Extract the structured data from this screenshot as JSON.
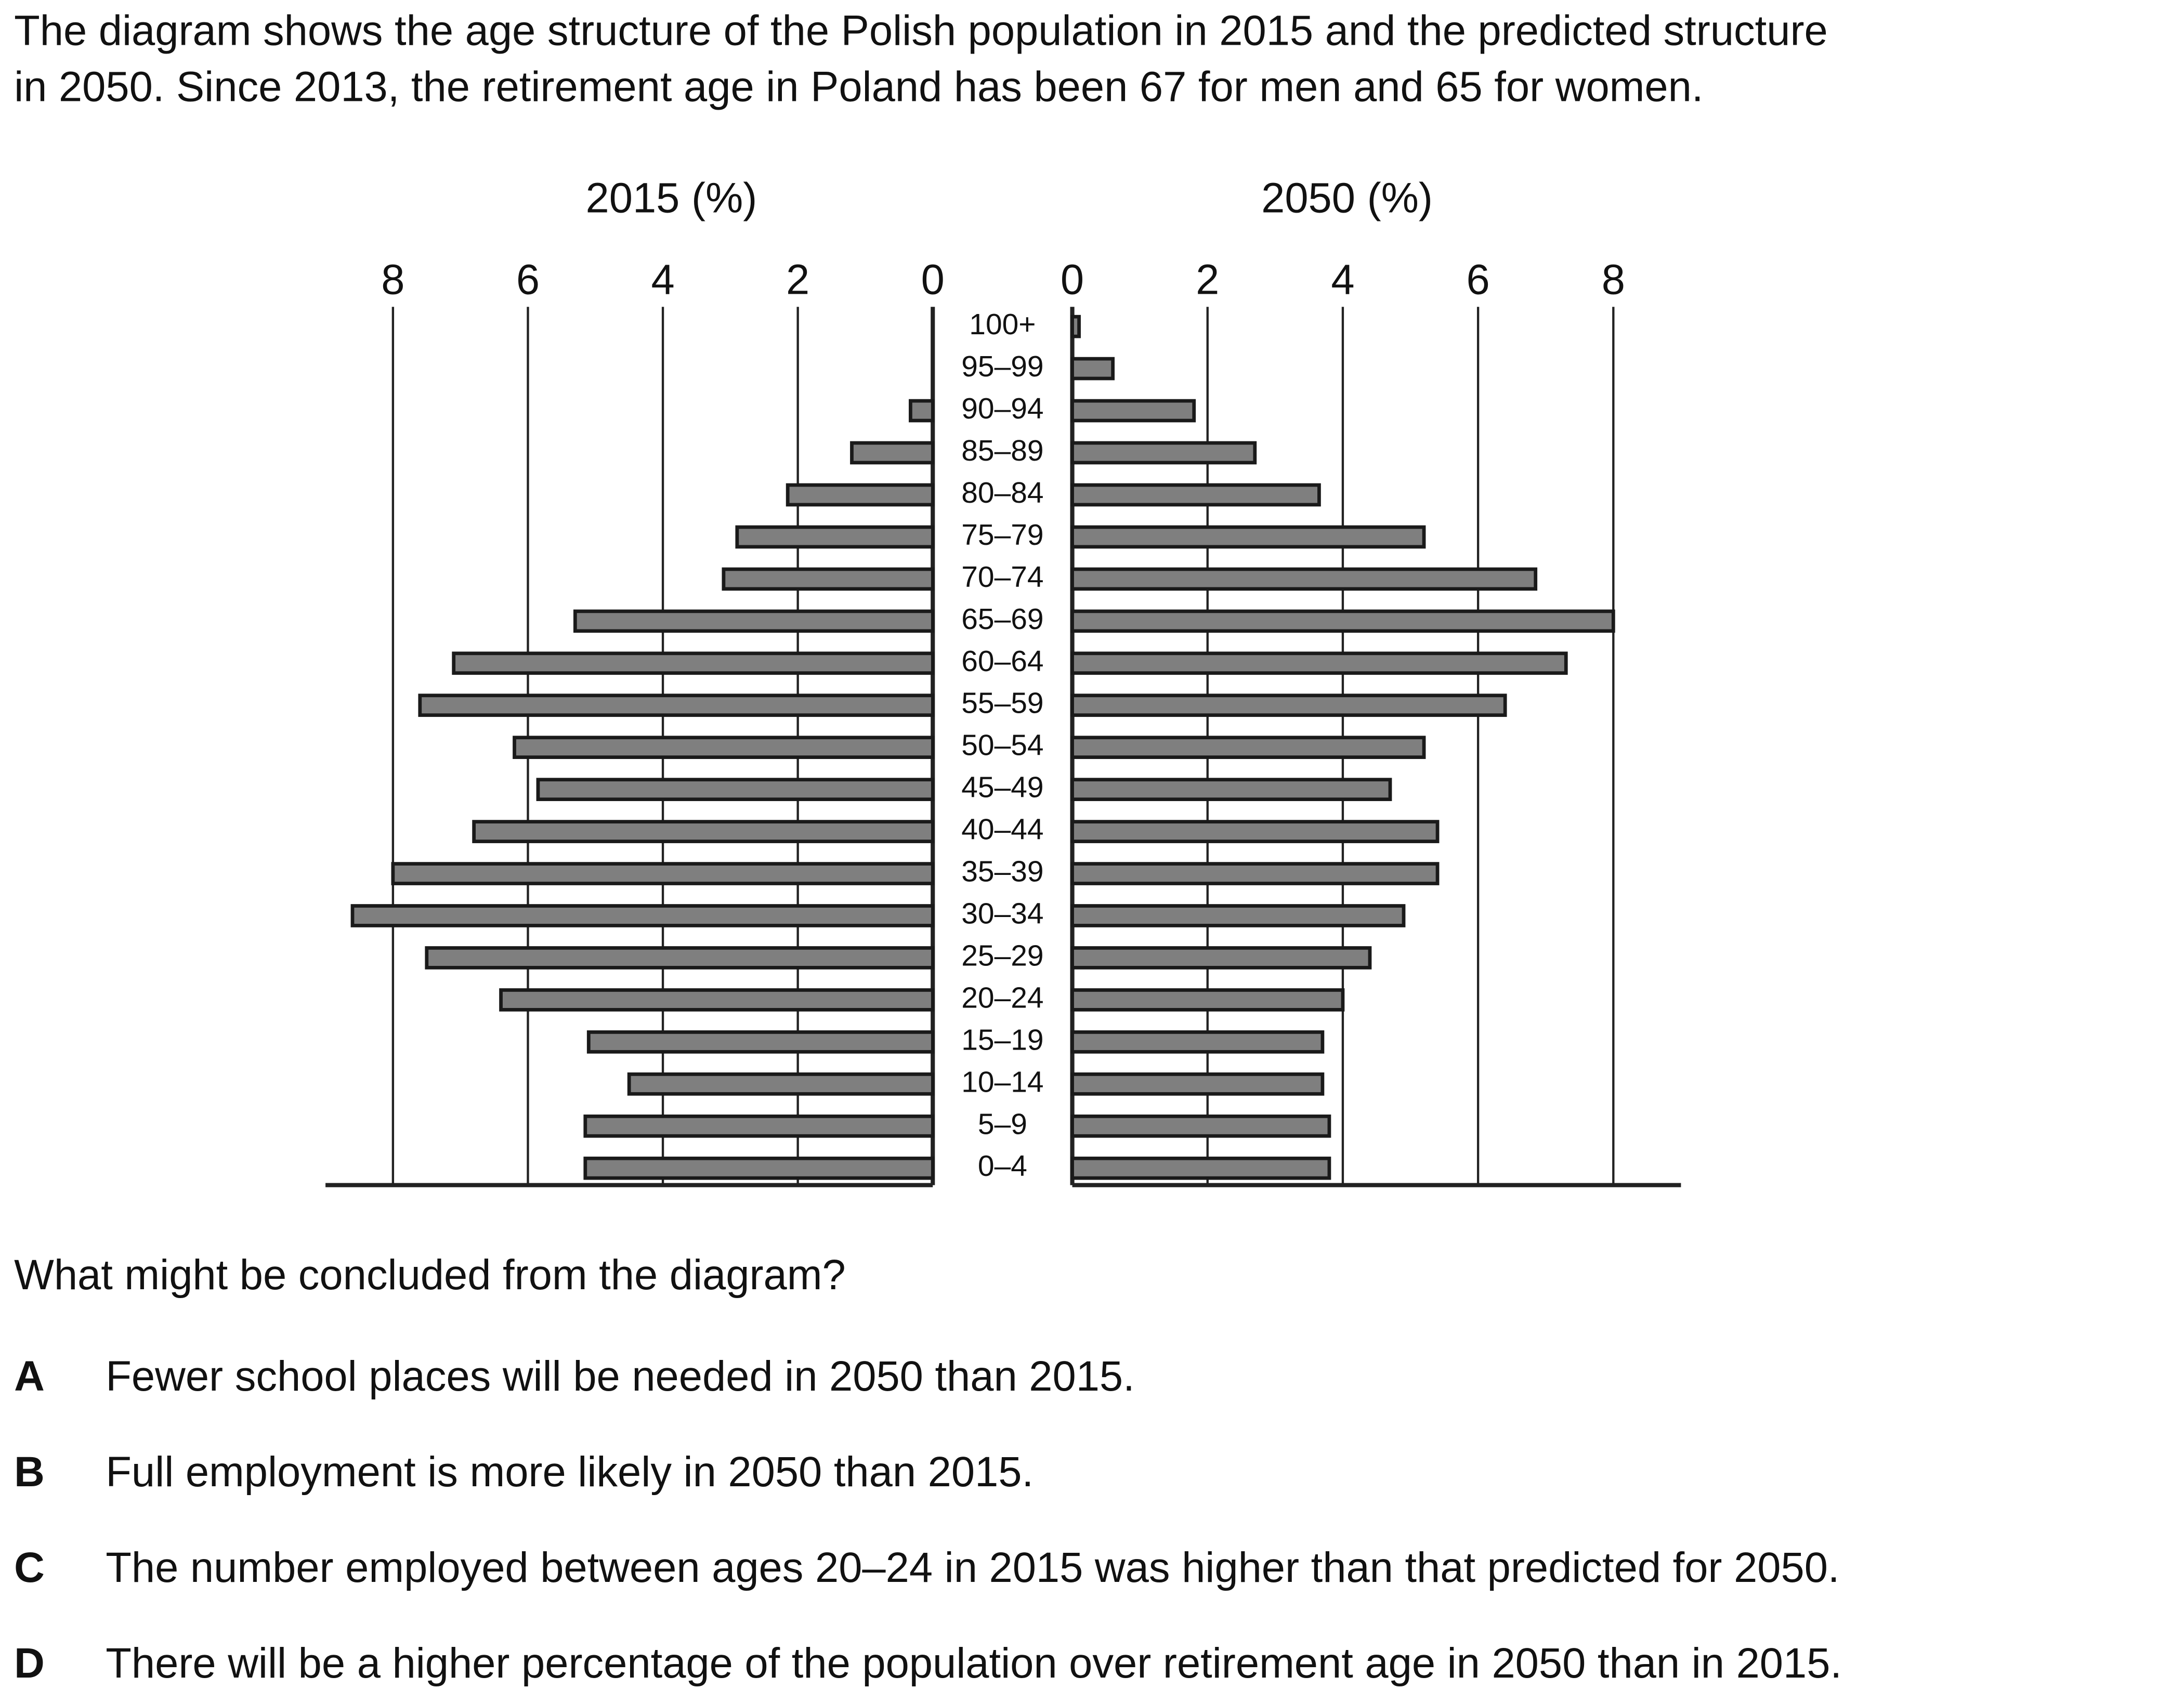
{
  "intro": [
    "The diagram shows the age structure of the Polish population in 2015 and the predicted structure",
    "in 2050. Since 2013, the retirement age in Poland has been 67 for men and 65 for women."
  ],
  "chart_data": {
    "type": "bar",
    "orientation": "horizontal",
    "categories": [
      "100+",
      "95–99",
      "90–94",
      "85–89",
      "80–84",
      "75–79",
      "70–74",
      "65–69",
      "60–64",
      "55–59",
      "50–54",
      "45–49",
      "40–44",
      "35–39",
      "30–34",
      "25–29",
      "20–24",
      "15–19",
      "10–14",
      "5–9",
      "0–4"
    ],
    "grid": true,
    "color": "#7f7f7f",
    "series": [
      {
        "name": "2015 (%)",
        "xlim": [
          9,
          0
        ],
        "xticks": [
          8,
          6,
          4,
          2,
          0
        ],
        "values": [
          0,
          0,
          0.33,
          1.2,
          2.15,
          2.9,
          3.1,
          5.3,
          7.1,
          7.6,
          6.2,
          5.85,
          6.8,
          8.0,
          8.6,
          7.5,
          6.4,
          5.1,
          4.5,
          5.15,
          5.15
        ]
      },
      {
        "name": "2050 (%)",
        "xlim": [
          0,
          9
        ],
        "xticks": [
          0,
          2,
          4,
          6,
          8
        ],
        "values": [
          0.1,
          0.6,
          1.8,
          2.7,
          3.65,
          5.2,
          6.85,
          8.0,
          7.3,
          6.4,
          5.2,
          4.7,
          5.4,
          5.4,
          4.9,
          4.4,
          4.0,
          3.7,
          3.7,
          3.8,
          3.8
        ]
      }
    ]
  },
  "question": "What might be concluded from the diagram?",
  "options": [
    {
      "letter": "A",
      "text": "Fewer school places will be needed in 2050 than 2015."
    },
    {
      "letter": "B",
      "text": "Full employment is more likely in 2050 than 2015."
    },
    {
      "letter": "C",
      "text": "The number employed between ages 20–24 in 2015 was higher than that predicted for 2050."
    },
    {
      "letter": "D",
      "text": "There will be a higher percentage of the population over retirement age in 2050 than in 2015."
    }
  ]
}
